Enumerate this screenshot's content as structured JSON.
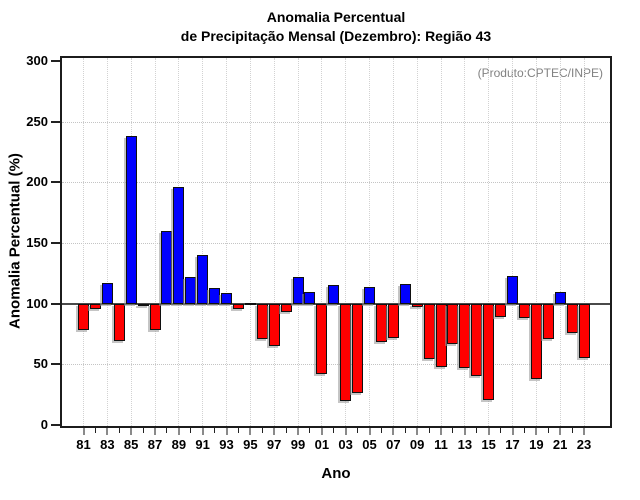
{
  "title_line1": "Anomalia Percentual",
  "title_line2": "de Precipitação Mensal (Dezembro): Região 43",
  "annotation": "(Produto:CPTEC/INPE)",
  "chart_data": {
    "type": "bar",
    "title": "Anomalia Percentual de Precipitação Mensal (Dezembro): Região 43",
    "xlabel": "Ano",
    "ylabel": "Anomalia Percentual (%)",
    "ylim": [
      0,
      300
    ],
    "yticks": [
      0,
      50,
      100,
      150,
      200,
      250,
      300
    ],
    "baseline": 100,
    "grid": true,
    "legend": "none",
    "bar_color_above_baseline": "#0000ff",
    "bar_color_below_baseline": "#ff0000",
    "x_labels_every": 2,
    "categories": [
      "81",
      "82",
      "83",
      "84",
      "85",
      "86",
      "87",
      "88",
      "89",
      "90",
      "91",
      "92",
      "93",
      "94",
      "95",
      "96",
      "97",
      "98",
      "99",
      "00",
      "01",
      "02",
      "03",
      "04",
      "05",
      "06",
      "07",
      "08",
      "09",
      "10",
      "11",
      "12",
      "13",
      "14",
      "15",
      "16",
      "17",
      "18",
      "19",
      "20",
      "21",
      "22",
      "23"
    ],
    "values": [
      78,
      96,
      117,
      69,
      238,
      98,
      78,
      160,
      196,
      122,
      140,
      113,
      109,
      96,
      100,
      71,
      65,
      93,
      122,
      110,
      42,
      115,
      20,
      26,
      114,
      68,
      72,
      116,
      97,
      54,
      48,
      67,
      47,
      40,
      21,
      89,
      123,
      88,
      38,
      71,
      110,
      76,
      55
    ]
  }
}
